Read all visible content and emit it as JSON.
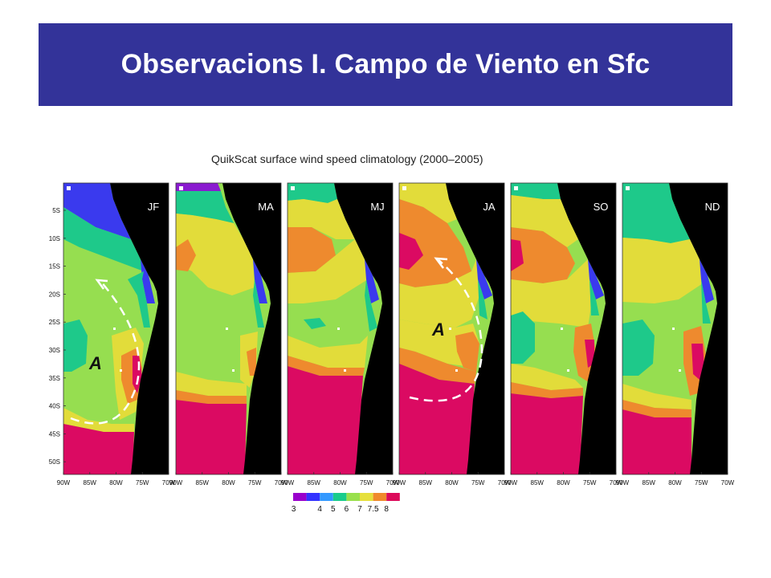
{
  "slide": {
    "title": "Observacions I. Campo de Viento en Sfc"
  },
  "figure": {
    "title": "QuikScat surface wind speed climatology (2000–2005)",
    "panels": [
      "JF",
      "MA",
      "MJ",
      "JA",
      "SO",
      "ND"
    ],
    "lat_labels": [
      "5S",
      "10S",
      "15S",
      "20S",
      "25S",
      "30S",
      "35S",
      "40S",
      "45S",
      "50S"
    ],
    "lon_labels": [
      "90W",
      "85W",
      "80W",
      "75W",
      "70W"
    ],
    "annotations": [
      "A",
      "A"
    ],
    "colorbar": {
      "labels": [
        "3",
        "4",
        "5",
        "6",
        "7",
        "7.5",
        "8"
      ],
      "colors": [
        "#9900cc",
        "#3333ff",
        "#3399ff",
        "#19cc8c",
        "#99e04c",
        "#e6e03c",
        "#f08a2c",
        "#dc0a5a"
      ]
    },
    "map_colors": {
      "land": "#000000",
      "purple": "#8a1ad0",
      "blue": "#3a3aee",
      "lightblue": "#3aa0ee",
      "teal": "#1ec98a",
      "green": "#96de50",
      "yellow": "#e2dc3a",
      "orange": "#ee8a2e",
      "magenta": "#db0a62"
    }
  }
}
